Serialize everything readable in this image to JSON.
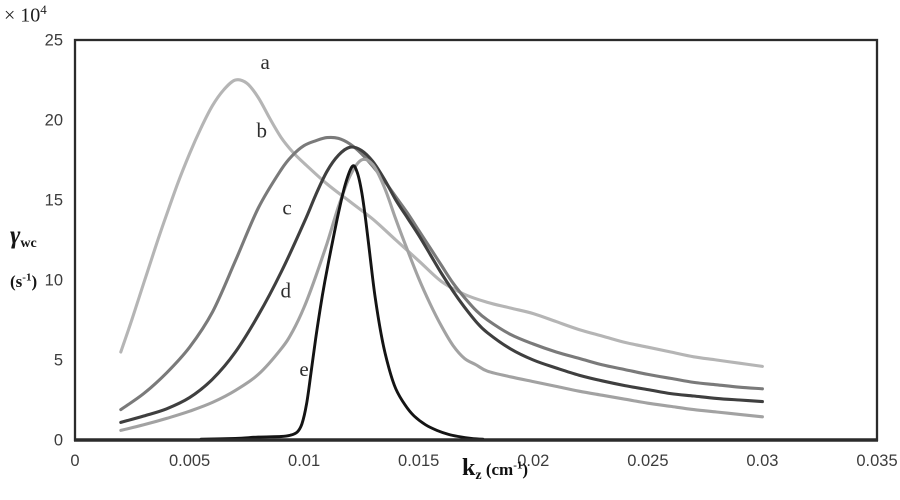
{
  "figure": {
    "scale_note": {
      "base": "× 10",
      "sup": "4"
    },
    "ylabel_parts": {
      "symbol": "γ",
      "sub": "wc",
      "unit_open": "(s",
      "unit_sup": "-1",
      "unit_close": ")"
    },
    "xlabel_parts": {
      "symbol": "k",
      "sub": "z",
      "unit_open": " (cm",
      "unit_sup": "-1",
      "unit_close": ")"
    },
    "frame_color": "#2b2b2b",
    "background": "#ffffff"
  },
  "chart_data": {
    "type": "line",
    "title": "",
    "xlabel": "kz (cm-1)",
    "ylabel": "γwc (s-1), values in units of 10^4",
    "xlim": [
      0,
      0.035
    ],
    "ylim": [
      0,
      25
    ],
    "grid": false,
    "legend_position": "inline-curve-labels",
    "x_ticks": [
      0,
      0.005,
      0.01,
      0.015,
      0.02,
      0.025,
      0.03,
      0.035
    ],
    "x_tick_labels": [
      "0",
      "0.005",
      "0.01",
      "0.015",
      "0.02",
      "0.025",
      "0.03",
      "0.035"
    ],
    "y_ticks": [
      0,
      5,
      10,
      15,
      20,
      25
    ],
    "y_tick_labels": [
      "0",
      "5",
      "10",
      "15",
      "20",
      "25"
    ],
    "series": [
      {
        "name": "a",
        "color": "#b5b5b5",
        "width": 3.1,
        "label": "a",
        "label_x": 0.0083,
        "label_y": 23.2,
        "points": [
          [
            0.002,
            5.5
          ],
          [
            0.0025,
            7.6
          ],
          [
            0.003,
            9.8
          ],
          [
            0.0035,
            12.0
          ],
          [
            0.004,
            14.1
          ],
          [
            0.0045,
            16.1
          ],
          [
            0.005,
            17.9
          ],
          [
            0.0055,
            19.5
          ],
          [
            0.006,
            20.9
          ],
          [
            0.0065,
            21.9
          ],
          [
            0.007,
            22.5
          ],
          [
            0.0075,
            22.3
          ],
          [
            0.008,
            21.4
          ],
          [
            0.0085,
            20.1
          ],
          [
            0.009,
            18.9
          ],
          [
            0.0095,
            18.0
          ],
          [
            0.01,
            17.3
          ],
          [
            0.011,
            16.0
          ],
          [
            0.012,
            14.9
          ],
          [
            0.013,
            13.8
          ],
          [
            0.014,
            12.5
          ],
          [
            0.015,
            11.2
          ],
          [
            0.016,
            9.9
          ],
          [
            0.017,
            9.1
          ],
          [
            0.018,
            8.6
          ],
          [
            0.019,
            8.25
          ],
          [
            0.02,
            7.9
          ],
          [
            0.021,
            7.4
          ],
          [
            0.022,
            6.9
          ],
          [
            0.023,
            6.5
          ],
          [
            0.024,
            6.1
          ],
          [
            0.025,
            5.8
          ],
          [
            0.026,
            5.5
          ],
          [
            0.027,
            5.2
          ],
          [
            0.028,
            5.0
          ],
          [
            0.029,
            4.8
          ],
          [
            0.03,
            4.6
          ]
        ]
      },
      {
        "name": "b",
        "color": "#7a7a7a",
        "width": 3.1,
        "label": "b",
        "label_x": 0.00815,
        "label_y": 18.9,
        "points": [
          [
            0.002,
            1.9
          ],
          [
            0.003,
            2.9
          ],
          [
            0.004,
            4.2
          ],
          [
            0.005,
            5.8
          ],
          [
            0.006,
            8.0
          ],
          [
            0.007,
            11.2
          ],
          [
            0.008,
            14.5
          ],
          [
            0.009,
            16.9
          ],
          [
            0.0095,
            17.8
          ],
          [
            0.01,
            18.4
          ],
          [
            0.0105,
            18.7
          ],
          [
            0.011,
            18.9
          ],
          [
            0.0115,
            18.85
          ],
          [
            0.012,
            18.5
          ],
          [
            0.0125,
            17.9
          ],
          [
            0.013,
            17.1
          ],
          [
            0.0135,
            16.2
          ],
          [
            0.014,
            15.2
          ],
          [
            0.0145,
            14.2
          ],
          [
            0.015,
            13.1
          ],
          [
            0.0155,
            12.0
          ],
          [
            0.016,
            10.9
          ],
          [
            0.0165,
            9.8
          ],
          [
            0.017,
            8.9
          ],
          [
            0.0175,
            8.1
          ],
          [
            0.018,
            7.5
          ],
          [
            0.019,
            6.6
          ],
          [
            0.02,
            6.0
          ],
          [
            0.021,
            5.5
          ],
          [
            0.022,
            5.1
          ],
          [
            0.023,
            4.7
          ],
          [
            0.024,
            4.4
          ],
          [
            0.025,
            4.1
          ],
          [
            0.026,
            3.85
          ],
          [
            0.027,
            3.6
          ],
          [
            0.028,
            3.45
          ],
          [
            0.029,
            3.3
          ],
          [
            0.03,
            3.2
          ]
        ]
      },
      {
        "name": "c",
        "color": "#3f3f3f",
        "width": 3.1,
        "label": "c",
        "label_x": 0.00925,
        "label_y": 14.1,
        "points": [
          [
            0.002,
            1.1
          ],
          [
            0.003,
            1.5
          ],
          [
            0.004,
            1.95
          ],
          [
            0.005,
            2.65
          ],
          [
            0.006,
            3.8
          ],
          [
            0.007,
            5.5
          ],
          [
            0.008,
            7.8
          ],
          [
            0.009,
            10.5
          ],
          [
            0.01,
            13.6
          ],
          [
            0.0105,
            15.3
          ],
          [
            0.011,
            16.8
          ],
          [
            0.0115,
            17.8
          ],
          [
            0.012,
            18.3
          ],
          [
            0.0125,
            18.1
          ],
          [
            0.013,
            17.4
          ],
          [
            0.0135,
            16.3
          ],
          [
            0.014,
            15.0
          ],
          [
            0.0145,
            13.9
          ],
          [
            0.015,
            12.8
          ],
          [
            0.0155,
            11.6
          ],
          [
            0.016,
            10.4
          ],
          [
            0.0165,
            9.3
          ],
          [
            0.017,
            8.3
          ],
          [
            0.0175,
            7.4
          ],
          [
            0.018,
            6.7
          ],
          [
            0.019,
            5.7
          ],
          [
            0.02,
            5.0
          ],
          [
            0.021,
            4.5
          ],
          [
            0.022,
            4.05
          ],
          [
            0.023,
            3.7
          ],
          [
            0.024,
            3.4
          ],
          [
            0.025,
            3.15
          ],
          [
            0.026,
            2.9
          ],
          [
            0.027,
            2.75
          ],
          [
            0.028,
            2.6
          ],
          [
            0.029,
            2.5
          ],
          [
            0.03,
            2.4
          ]
        ]
      },
      {
        "name": "d",
        "color": "#a2a2a2",
        "width": 3.1,
        "label": "d",
        "label_x": 0.0092,
        "label_y": 8.9,
        "points": [
          [
            0.002,
            0.6
          ],
          [
            0.003,
            0.95
          ],
          [
            0.004,
            1.35
          ],
          [
            0.005,
            1.8
          ],
          [
            0.006,
            2.35
          ],
          [
            0.007,
            3.1
          ],
          [
            0.008,
            4.1
          ],
          [
            0.009,
            5.7
          ],
          [
            0.0095,
            6.8
          ],
          [
            0.01,
            8.3
          ],
          [
            0.0105,
            10.2
          ],
          [
            0.011,
            12.3
          ],
          [
            0.0115,
            14.6
          ],
          [
            0.012,
            16.5
          ],
          [
            0.0125,
            17.5
          ],
          [
            0.013,
            17.2
          ],
          [
            0.0135,
            15.8
          ],
          [
            0.014,
            13.8
          ],
          [
            0.0145,
            11.9
          ],
          [
            0.015,
            10.1
          ],
          [
            0.0155,
            8.5
          ],
          [
            0.016,
            7.1
          ],
          [
            0.0165,
            5.9
          ],
          [
            0.017,
            5.1
          ],
          [
            0.0175,
            4.7
          ],
          [
            0.018,
            4.3
          ],
          [
            0.019,
            3.95
          ],
          [
            0.02,
            3.65
          ],
          [
            0.021,
            3.35
          ],
          [
            0.022,
            3.05
          ],
          [
            0.023,
            2.8
          ],
          [
            0.024,
            2.55
          ],
          [
            0.025,
            2.3
          ],
          [
            0.026,
            2.1
          ],
          [
            0.027,
            1.9
          ],
          [
            0.028,
            1.75
          ],
          [
            0.029,
            1.6
          ],
          [
            0.03,
            1.45
          ]
        ]
      },
      {
        "name": "e",
        "color": "#141414",
        "width": 2.9,
        "label": "e",
        "label_x": 0.01,
        "label_y": 4.0,
        "points": [
          [
            0.0055,
            0.05
          ],
          [
            0.007,
            0.1
          ],
          [
            0.008,
            0.18
          ],
          [
            0.009,
            0.22
          ],
          [
            0.0094,
            0.3
          ],
          [
            0.0097,
            0.5
          ],
          [
            0.0099,
            1.0
          ],
          [
            0.0101,
            2.2
          ],
          [
            0.0103,
            4.2
          ],
          [
            0.0105,
            6.3
          ],
          [
            0.0107,
            8.2
          ],
          [
            0.0109,
            9.9
          ],
          [
            0.0112,
            12.1
          ],
          [
            0.0115,
            14.2
          ],
          [
            0.0118,
            16.0
          ],
          [
            0.0121,
            17.1
          ],
          [
            0.0123,
            16.8
          ],
          [
            0.0125,
            15.6
          ],
          [
            0.0127,
            13.6
          ],
          [
            0.0129,
            11.2
          ],
          [
            0.0131,
            8.9
          ],
          [
            0.0134,
            6.3
          ],
          [
            0.0137,
            4.5
          ],
          [
            0.014,
            3.2
          ],
          [
            0.0144,
            2.2
          ],
          [
            0.0148,
            1.5
          ],
          [
            0.0153,
            0.95
          ],
          [
            0.0158,
            0.6
          ],
          [
            0.0163,
            0.35
          ],
          [
            0.0168,
            0.2
          ],
          [
            0.0173,
            0.1
          ],
          [
            0.0178,
            0.05
          ]
        ]
      }
    ]
  }
}
